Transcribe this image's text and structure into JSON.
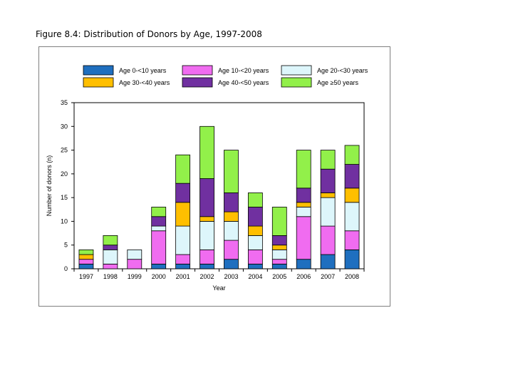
{
  "figure_title": "Figure 8.4: Distribution of Donors by Age, 1997-2008",
  "chart_data": {
    "type": "bar",
    "stacked": true,
    "title": "",
    "xlabel": "Year",
    "ylabel": "Number of donors (n)",
    "ylim": [
      0,
      35
    ],
    "yticks": [
      0,
      5,
      10,
      15,
      20,
      25,
      30,
      35
    ],
    "categories": [
      "1997",
      "1998",
      "1999",
      "2000",
      "2001",
      "2002",
      "2003",
      "2004",
      "2005",
      "2006",
      "2007",
      "2008"
    ],
    "series": [
      {
        "name": "Age 0-<10 years",
        "color": "#1f6fbf",
        "values": [
          1,
          0,
          0,
          1,
          1,
          1,
          2,
          1,
          1,
          2,
          3,
          4
        ]
      },
      {
        "name": "Age 10-<20 years",
        "color": "#f06cf0",
        "values": [
          1,
          1,
          2,
          7,
          2,
          3,
          4,
          3,
          1,
          9,
          6,
          4
        ]
      },
      {
        "name": "Age 20-<30 years",
        "color": "#ddf6fb",
        "values": [
          0,
          3,
          2,
          1,
          6,
          6,
          4,
          3,
          2,
          2,
          6,
          6
        ]
      },
      {
        "name": "Age 30-<40 years",
        "color": "#ffbf00",
        "values": [
          1,
          0,
          0,
          0,
          5,
          1,
          2,
          2,
          1,
          1,
          1,
          3
        ]
      },
      {
        "name": "Age 40-<50 years",
        "color": "#7030a0",
        "values": [
          0,
          1,
          0,
          2,
          4,
          8,
          4,
          4,
          2,
          3,
          5,
          5
        ]
      },
      {
        "name": "Age ≥50 years",
        "color": "#92f04a",
        "values": [
          1,
          2,
          0,
          2,
          6,
          11,
          9,
          3,
          6,
          8,
          4,
          4
        ]
      }
    ],
    "legend_position": "top",
    "grid": false
  }
}
